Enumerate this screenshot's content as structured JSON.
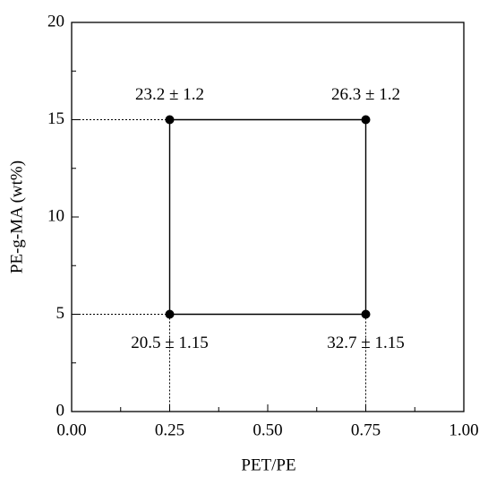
{
  "chart_data": {
    "type": "scatter",
    "x_label": "PET/PE",
    "y_label": "PE-g-MA (wt%)",
    "x": [
      0.25,
      0.25,
      0.75,
      0.75
    ],
    "y": [
      5,
      15,
      15,
      5
    ],
    "point_labels": [
      "20.5 ± 1.15",
      "23.2 ± 1.2",
      "26.3 ± 1.2",
      "32.7 ± 1.15"
    ],
    "color": "#000000",
    "xlim": [
      0,
      1
    ],
    "ylim": [
      0,
      20
    ],
    "xticks": [
      {
        "value": 0,
        "label": "0.00"
      },
      {
        "value": 0.25,
        "label": "0.25"
      },
      {
        "value": 0.5,
        "label": "0.50"
      },
      {
        "value": 0.75,
        "label": "0.75"
      },
      {
        "value": 1,
        "label": "1.00"
      }
    ],
    "yticks": [
      0,
      5,
      10,
      15,
      20
    ],
    "xminorticks": [
      0.125,
      0.375,
      0.625,
      0.875
    ],
    "yminorticks": [
      2.5,
      7.5,
      12.5,
      17.5
    ]
  }
}
